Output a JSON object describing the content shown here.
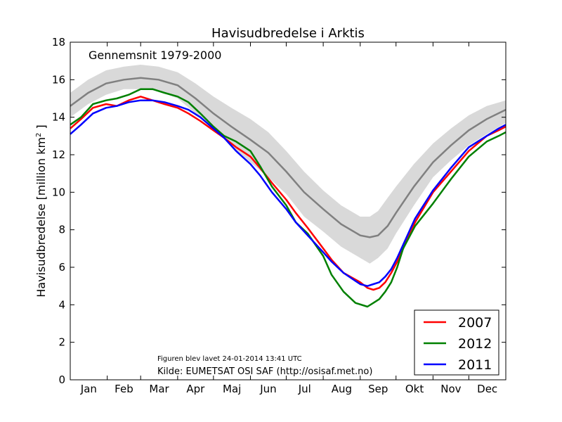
{
  "chart_data": {
    "type": "line",
    "title": "Havisudbredelse i Arktis",
    "ylabel": "Havisudbredelse [million km",
    "ylabel_sup": "2",
    "ylabel_close": " ]",
    "xlabel": "",
    "xlim": [
      1,
      366
    ],
    "ylim": [
      0,
      18
    ],
    "yticks": [
      "0",
      "2",
      "4",
      "6",
      "8",
      "10",
      "12",
      "14",
      "16",
      "18"
    ],
    "months": [
      "Jan",
      "Feb",
      "Mar",
      "Apr",
      "Maj",
      "Jun",
      "Jul",
      "Aug",
      "Sep",
      "Okt",
      "Nov",
      "Dec"
    ],
    "grid": false,
    "legend_position": "lower-right",
    "baseline": {
      "label": "Gennemsnit 1979-2000",
      "color": "#808080",
      "band_color": "#d9d9d9",
      "x": [
        1,
        16,
        31,
        46,
        60,
        75,
        91,
        106,
        121,
        136,
        152,
        167,
        182,
        197,
        213,
        228,
        244,
        252,
        259,
        267,
        274,
        289,
        305,
        320,
        335,
        350,
        366
      ],
      "mean": [
        14.6,
        15.3,
        15.8,
        16.0,
        16.1,
        16.0,
        15.7,
        15.0,
        14.2,
        13.5,
        12.8,
        12.1,
        11.1,
        10.0,
        9.1,
        8.3,
        7.7,
        7.6,
        7.7,
        8.2,
        8.9,
        10.3,
        11.6,
        12.5,
        13.3,
        13.9,
        14.4
      ],
      "upper": [
        15.3,
        16.0,
        16.5,
        16.7,
        16.8,
        16.7,
        16.4,
        15.8,
        15.1,
        14.5,
        13.9,
        13.2,
        12.2,
        11.1,
        10.1,
        9.3,
        8.7,
        8.7,
        9.0,
        9.7,
        10.3,
        11.5,
        12.6,
        13.4,
        14.1,
        14.6,
        14.9
      ],
      "lower": [
        14.0,
        14.7,
        15.2,
        15.5,
        15.5,
        15.4,
        15.0,
        14.2,
        13.3,
        12.5,
        11.6,
        10.8,
        9.9,
        8.7,
        7.9,
        7.1,
        6.5,
        6.2,
        6.5,
        7.0,
        7.8,
        9.3,
        10.8,
        11.7,
        12.5,
        13.1,
        13.7
      ]
    },
    "series": [
      {
        "name": "2007",
        "color": "#ff0000",
        "x": [
          1,
          10,
          20,
          31,
          40,
          50,
          60,
          70,
          80,
          91,
          100,
          110,
          121,
          130,
          140,
          152,
          160,
          170,
          182,
          190,
          200,
          213,
          220,
          230,
          244,
          250,
          255,
          260,
          265,
          270,
          275,
          280,
          290,
          305,
          320,
          335,
          350,
          360,
          366
        ],
        "y": [
          13.4,
          13.9,
          14.5,
          14.7,
          14.6,
          14.9,
          15.1,
          14.9,
          14.7,
          14.5,
          14.2,
          13.8,
          13.3,
          12.9,
          12.4,
          11.9,
          11.3,
          10.5,
          9.6,
          8.9,
          8.1,
          7.0,
          6.4,
          5.7,
          5.2,
          4.9,
          4.8,
          4.9,
          5.2,
          5.7,
          6.3,
          7.0,
          8.4,
          10.0,
          11.1,
          12.2,
          13.0,
          13.3,
          13.5
        ]
      },
      {
        "name": "2012",
        "color": "#008000",
        "x": [
          1,
          10,
          20,
          31,
          40,
          50,
          60,
          70,
          80,
          91,
          100,
          110,
          121,
          130,
          140,
          152,
          160,
          170,
          182,
          190,
          200,
          213,
          220,
          230,
          240,
          250,
          255,
          260,
          265,
          270,
          275,
          280,
          290,
          305,
          320,
          335,
          350,
          360,
          366
        ],
        "y": [
          13.6,
          14.0,
          14.7,
          14.9,
          15.0,
          15.2,
          15.5,
          15.5,
          15.3,
          15.1,
          14.8,
          14.2,
          13.5,
          13.0,
          12.7,
          12.2,
          11.4,
          10.3,
          9.3,
          8.4,
          7.8,
          6.6,
          5.6,
          4.7,
          4.1,
          3.9,
          4.1,
          4.3,
          4.7,
          5.2,
          6.0,
          7.0,
          8.2,
          9.4,
          10.7,
          11.9,
          12.7,
          13.0,
          13.2
        ]
      },
      {
        "name": "2011",
        "color": "#0000ff",
        "x": [
          1,
          10,
          20,
          31,
          40,
          50,
          60,
          70,
          80,
          91,
          100,
          110,
          121,
          130,
          140,
          152,
          160,
          170,
          182,
          190,
          200,
          213,
          220,
          230,
          244,
          250,
          255,
          260,
          265,
          270,
          275,
          280,
          290,
          305,
          320,
          335,
          350,
          360,
          366
        ],
        "y": [
          13.1,
          13.6,
          14.2,
          14.5,
          14.6,
          14.8,
          14.9,
          14.9,
          14.8,
          14.6,
          14.4,
          14.0,
          13.4,
          12.9,
          12.2,
          11.5,
          10.9,
          10.0,
          9.1,
          8.4,
          7.7,
          6.8,
          6.3,
          5.7,
          5.1,
          5.0,
          5.1,
          5.2,
          5.5,
          5.9,
          6.5,
          7.2,
          8.6,
          10.1,
          11.3,
          12.4,
          13.0,
          13.4,
          13.6
        ]
      }
    ],
    "credits": {
      "made": "Figuren blev lavet 24-01-2014 13:41 UTC",
      "source": "Kilde: EUMETSAT OSI SAF (http://osisaf.met.no)"
    }
  }
}
